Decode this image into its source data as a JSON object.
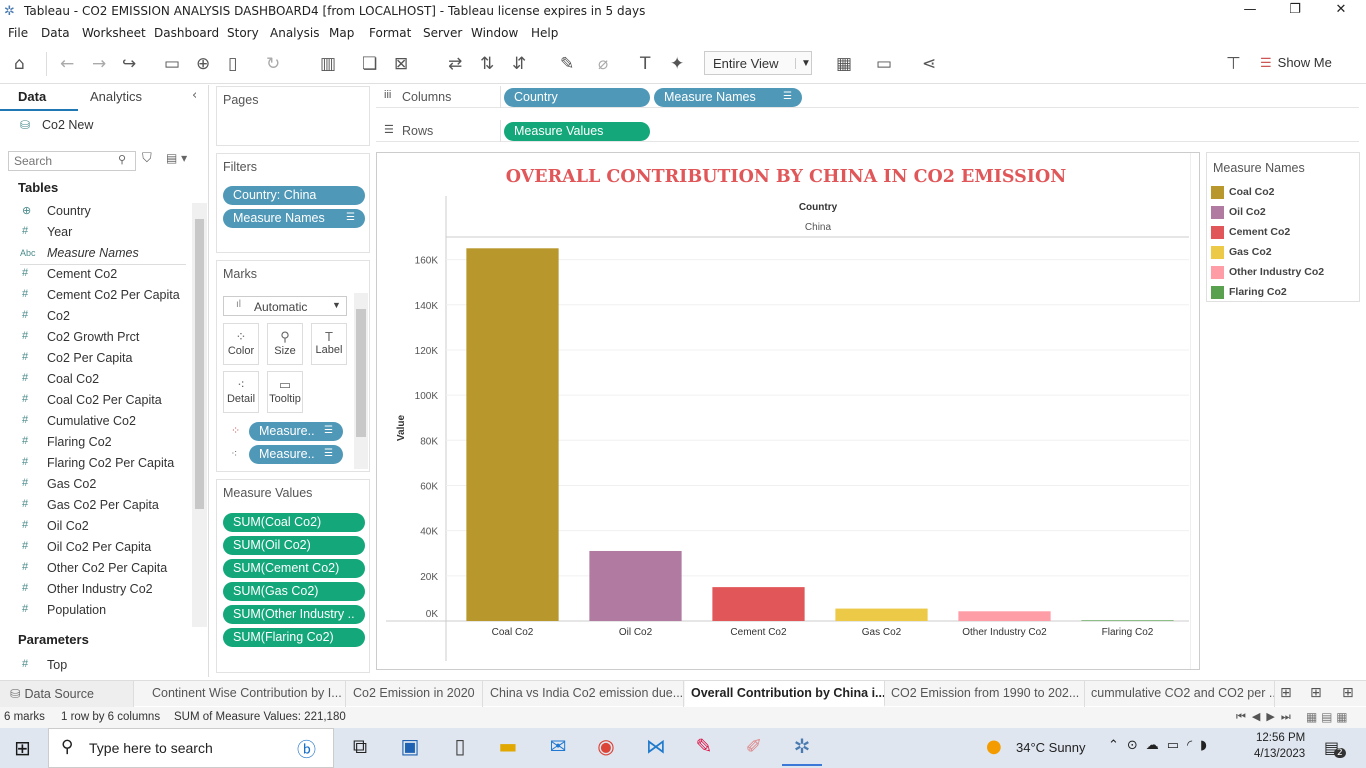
{
  "window": {
    "title": "Tableau - CO2 EMISSION ANALYSIS DASHBOARD4 [from LOCALHOST] - Tableau license expires in 5 days"
  },
  "menu": [
    "File",
    "Data",
    "Worksheet",
    "Dashboard",
    "Story",
    "Analysis",
    "Map",
    "Format",
    "Server",
    "Window",
    "Help"
  ],
  "toolbar": {
    "view_select": "Entire View",
    "show_me": "Show Me"
  },
  "datapane": {
    "tab_data": "Data",
    "tab_analytics": "Analytics",
    "datasource": "Co2 New",
    "search_placeholder": "Search",
    "tables_header": "Tables",
    "fields": [
      {
        "icon": "globe-icon",
        "glyph": "⊕",
        "label": "Country"
      },
      {
        "icon": "hash-icon",
        "glyph": "#",
        "label": "Year"
      },
      {
        "icon": "abc-icon",
        "glyph": "Abc",
        "label": "Measure Names"
      },
      {
        "icon": "hash-icon",
        "glyph": "#",
        "label": "Cement Co2"
      },
      {
        "icon": "hash-icon",
        "glyph": "#",
        "label": "Cement Co2 Per Capita"
      },
      {
        "icon": "hash-icon",
        "glyph": "#",
        "label": "Co2"
      },
      {
        "icon": "hash-icon",
        "glyph": "#",
        "label": "Co2 Growth Prct"
      },
      {
        "icon": "hash-icon",
        "glyph": "#",
        "label": "Co2 Per Capita"
      },
      {
        "icon": "hash-icon",
        "glyph": "#",
        "label": "Coal Co2"
      },
      {
        "icon": "hash-icon",
        "glyph": "#",
        "label": "Coal Co2 Per Capita"
      },
      {
        "icon": "hash-icon",
        "glyph": "#",
        "label": "Cumulative Co2"
      },
      {
        "icon": "hash-icon",
        "glyph": "#",
        "label": "Flaring Co2"
      },
      {
        "icon": "hash-icon",
        "glyph": "#",
        "label": "Flaring Co2 Per Capita"
      },
      {
        "icon": "hash-icon",
        "glyph": "#",
        "label": "Gas Co2"
      },
      {
        "icon": "hash-icon",
        "glyph": "#",
        "label": "Gas Co2 Per Capita"
      },
      {
        "icon": "hash-icon",
        "glyph": "#",
        "label": "Oil Co2"
      },
      {
        "icon": "hash-icon",
        "glyph": "#",
        "label": "Oil Co2 Per Capita"
      },
      {
        "icon": "hash-icon",
        "glyph": "#",
        "label": "Other Co2 Per Capita"
      },
      {
        "icon": "hash-icon",
        "glyph": "#",
        "label": "Other Industry Co2"
      },
      {
        "icon": "hash-icon",
        "glyph": "#",
        "label": "Population"
      }
    ],
    "parameters_header": "Parameters",
    "parameters": [
      {
        "glyph": "#",
        "label": "Top"
      }
    ]
  },
  "pages": {
    "title": "Pages"
  },
  "filters": {
    "title": "Filters",
    "items": [
      "Country: China",
      "Measure Names"
    ]
  },
  "marks": {
    "title": "Marks",
    "type": "Automatic",
    "buttons": [
      "Color",
      "Size",
      "Label",
      "Detail",
      "Tooltip"
    ],
    "pills": [
      "Measure..",
      "Measure.."
    ]
  },
  "measure_values": {
    "title": "Measure Values",
    "items": [
      "SUM(Coal Co2)",
      "SUM(Oil Co2)",
      "SUM(Cement Co2)",
      "SUM(Gas Co2)",
      "SUM(Other Industry ..",
      "SUM(Flaring Co2)"
    ]
  },
  "shelves": {
    "columns_label": "Columns",
    "rows_label": "Rows",
    "columns": [
      "Country",
      "Measure Names"
    ],
    "rows": [
      "Measure Values"
    ]
  },
  "chart_data": {
    "type": "bar",
    "title": "OVERALL CONTRIBUTION BY CHINA IN CO2 EMISSION",
    "header_field": "Country",
    "header_value": "China",
    "ylabel": "Value",
    "ylim": [
      0,
      170000
    ],
    "yticks": [
      0,
      20000,
      40000,
      60000,
      80000,
      100000,
      120000,
      140000,
      160000
    ],
    "ytick_labels": [
      "0K",
      "20K",
      "40K",
      "60K",
      "80K",
      "100K",
      "120K",
      "140K",
      "160K"
    ],
    "categories": [
      "Coal Co2",
      "Oil Co2",
      "Cement Co2",
      "Gas Co2",
      "Other Industry Co2",
      "Flaring Co2"
    ],
    "values": [
      165000,
      31000,
      15000,
      5500,
      4300,
      300
    ],
    "colors": [
      "#b8972c",
      "#b07aa1",
      "#e15759",
      "#edc948",
      "#ff9da7",
      "#59a14f"
    ]
  },
  "legend": {
    "title": "Measure Names",
    "items": [
      "Coal Co2",
      "Oil Co2",
      "Cement Co2",
      "Gas Co2",
      "Other Industry Co2",
      "Flaring Co2"
    ]
  },
  "sheet_tabs": [
    "Data Source",
    "Continent Wise Contribution by I...",
    "Co2 Emission in 2020",
    "China vs India Co2 emission due...",
    "Overall Contribution by China i...",
    "CO2 Emission from 1990 to 202...",
    "cummulative CO2 and CO2 per ..."
  ],
  "status": {
    "marks": "6 marks",
    "layout": "1 row by 6 columns",
    "sum": "SUM of Measure Values: 221,180"
  },
  "taskbar": {
    "search_placeholder": "Type here to search",
    "weather": "34°C  Sunny",
    "time": "12:56 PM",
    "date": "4/13/2023",
    "notif_count": "2"
  }
}
